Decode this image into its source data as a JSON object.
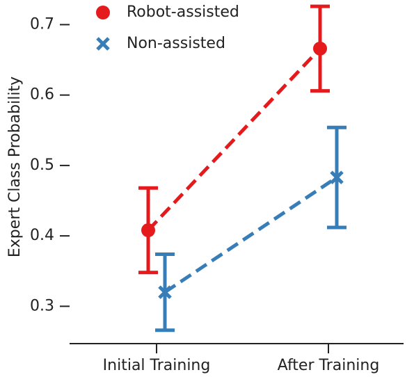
{
  "chart_data": {
    "type": "line",
    "y_label": "Expert Class Probability",
    "categories": [
      "Initial Training",
      "After Training"
    ],
    "series": [
      {
        "name": "Robot-assisted",
        "color": "#e41a1c",
        "marker": "circle",
        "values": [
          0.408,
          0.666
        ],
        "errors": [
          0.06,
          0.06
        ]
      },
      {
        "name": "Non-assisted",
        "color": "#377eb8",
        "marker": "x",
        "values": [
          0.32,
          0.483
        ],
        "errors": [
          0.054,
          0.071
        ]
      }
    ],
    "ylim": [
      0.247,
      0.735
    ],
    "yticks": [
      {
        "value": 0.3,
        "label": "0.3"
      },
      {
        "value": 0.4,
        "label": "0.4"
      },
      {
        "value": 0.5,
        "label": "0.5"
      },
      {
        "value": 0.6,
        "label": "0.6"
      },
      {
        "value": 0.7,
        "label": "0.7"
      }
    ],
    "legend": "upper left",
    "grid": false
  }
}
